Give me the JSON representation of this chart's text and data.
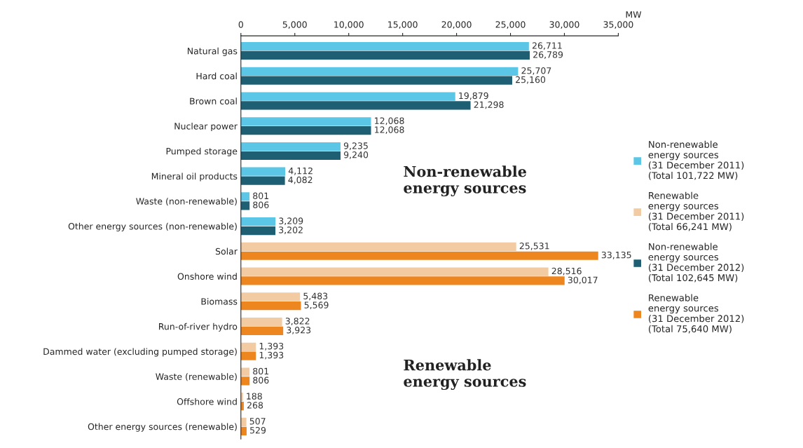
{
  "chart_data": {
    "type": "bar",
    "orientation": "horizontal",
    "xlabel": "MW",
    "categories": [
      "Natural gas",
      "Hard coal",
      "Brown coal",
      "Nuclear power",
      "Pumped storage",
      "Mineral oil products",
      "Waste (non-renewable)",
      "Other energy sources (non-renewable)",
      "Solar",
      "Onshore wind",
      "Biomass",
      "Run-of-river hydro",
      "Dammed water (excluding pumped storage)",
      "Waste (renewable)",
      "Offshore wind",
      "Other energy sources (renewable)"
    ],
    "series": [
      {
        "name": "Non-renewable\nenergy sources\n(31 December 2011)\n(Total 101,722 MW)",
        "color": "#5cc6e6",
        "values": [
          26711,
          25707,
          19879,
          12068,
          9235,
          4112,
          801,
          3209,
          null,
          null,
          null,
          null,
          null,
          null,
          null,
          null
        ],
        "value_labels": [
          "26,711",
          "25,707",
          "19,879",
          "12,068",
          "9,235",
          "4,112",
          "801",
          "3,209",
          null,
          null,
          null,
          null,
          null,
          null,
          null,
          null
        ]
      },
      {
        "name": "Renewable\nenergy sources\n(31 December 2011)\n(Total 66,241 MW)",
        "color": "#f2cba2",
        "values": [
          null,
          null,
          null,
          null,
          null,
          null,
          null,
          null,
          25531,
          28516,
          5483,
          3822,
          1393,
          801,
          188,
          507
        ],
        "value_labels": [
          null,
          null,
          null,
          null,
          null,
          null,
          null,
          null,
          "25,531",
          "28,516",
          "5,483",
          "3,822",
          "1,393",
          "801",
          "188",
          "507"
        ]
      },
      {
        "name": "Non-renewable\nenergy sources\n(31 December 2012)\n(Total 102,645 MW)",
        "color": "#1e5f74",
        "values": [
          26789,
          25160,
          21298,
          12068,
          9240,
          4082,
          806,
          3202,
          null,
          null,
          null,
          null,
          null,
          null,
          null,
          null
        ],
        "value_labels": [
          "26,789",
          "25,160",
          "21,298",
          "12,068",
          "9,240",
          "4,082",
          "806",
          "3,202",
          null,
          null,
          null,
          null,
          null,
          null,
          null,
          null
        ]
      },
      {
        "name": "Renewable\nenergy sources\n(31 December 2012)\n(Total 75,640 MW)",
        "color": "#ee8620",
        "values": [
          null,
          null,
          null,
          null,
          null,
          null,
          null,
          null,
          33135,
          30017,
          5569,
          3923,
          1393,
          806,
          268,
          529
        ],
        "value_labels": [
          null,
          null,
          null,
          null,
          null,
          null,
          null,
          null,
          "33,135",
          "30,017",
          "5,569",
          "3,923",
          "1,393",
          "806",
          "268",
          "529"
        ]
      }
    ],
    "xlim": [
      0,
      35000
    ],
    "xticks": [
      0,
      {
        "value": 5000,
        "label": "5,000"
      },
      {
        "value": 10000,
        "label": "10,000"
      },
      {
        "value": 15000,
        "label": "15,000"
      },
      {
        "value": 20000,
        "label": "20,000"
      },
      {
        "value": 25000,
        "label": "25,000"
      },
      {
        "value": 30000,
        "label": "30,000"
      },
      {
        "value": 35000,
        "label": "35,000"
      }
    ],
    "grid": false,
    "legend": "right",
    "annotations": [
      "Non-renewable\nenergy sources",
      "Renewable\nenergy sources"
    ]
  }
}
